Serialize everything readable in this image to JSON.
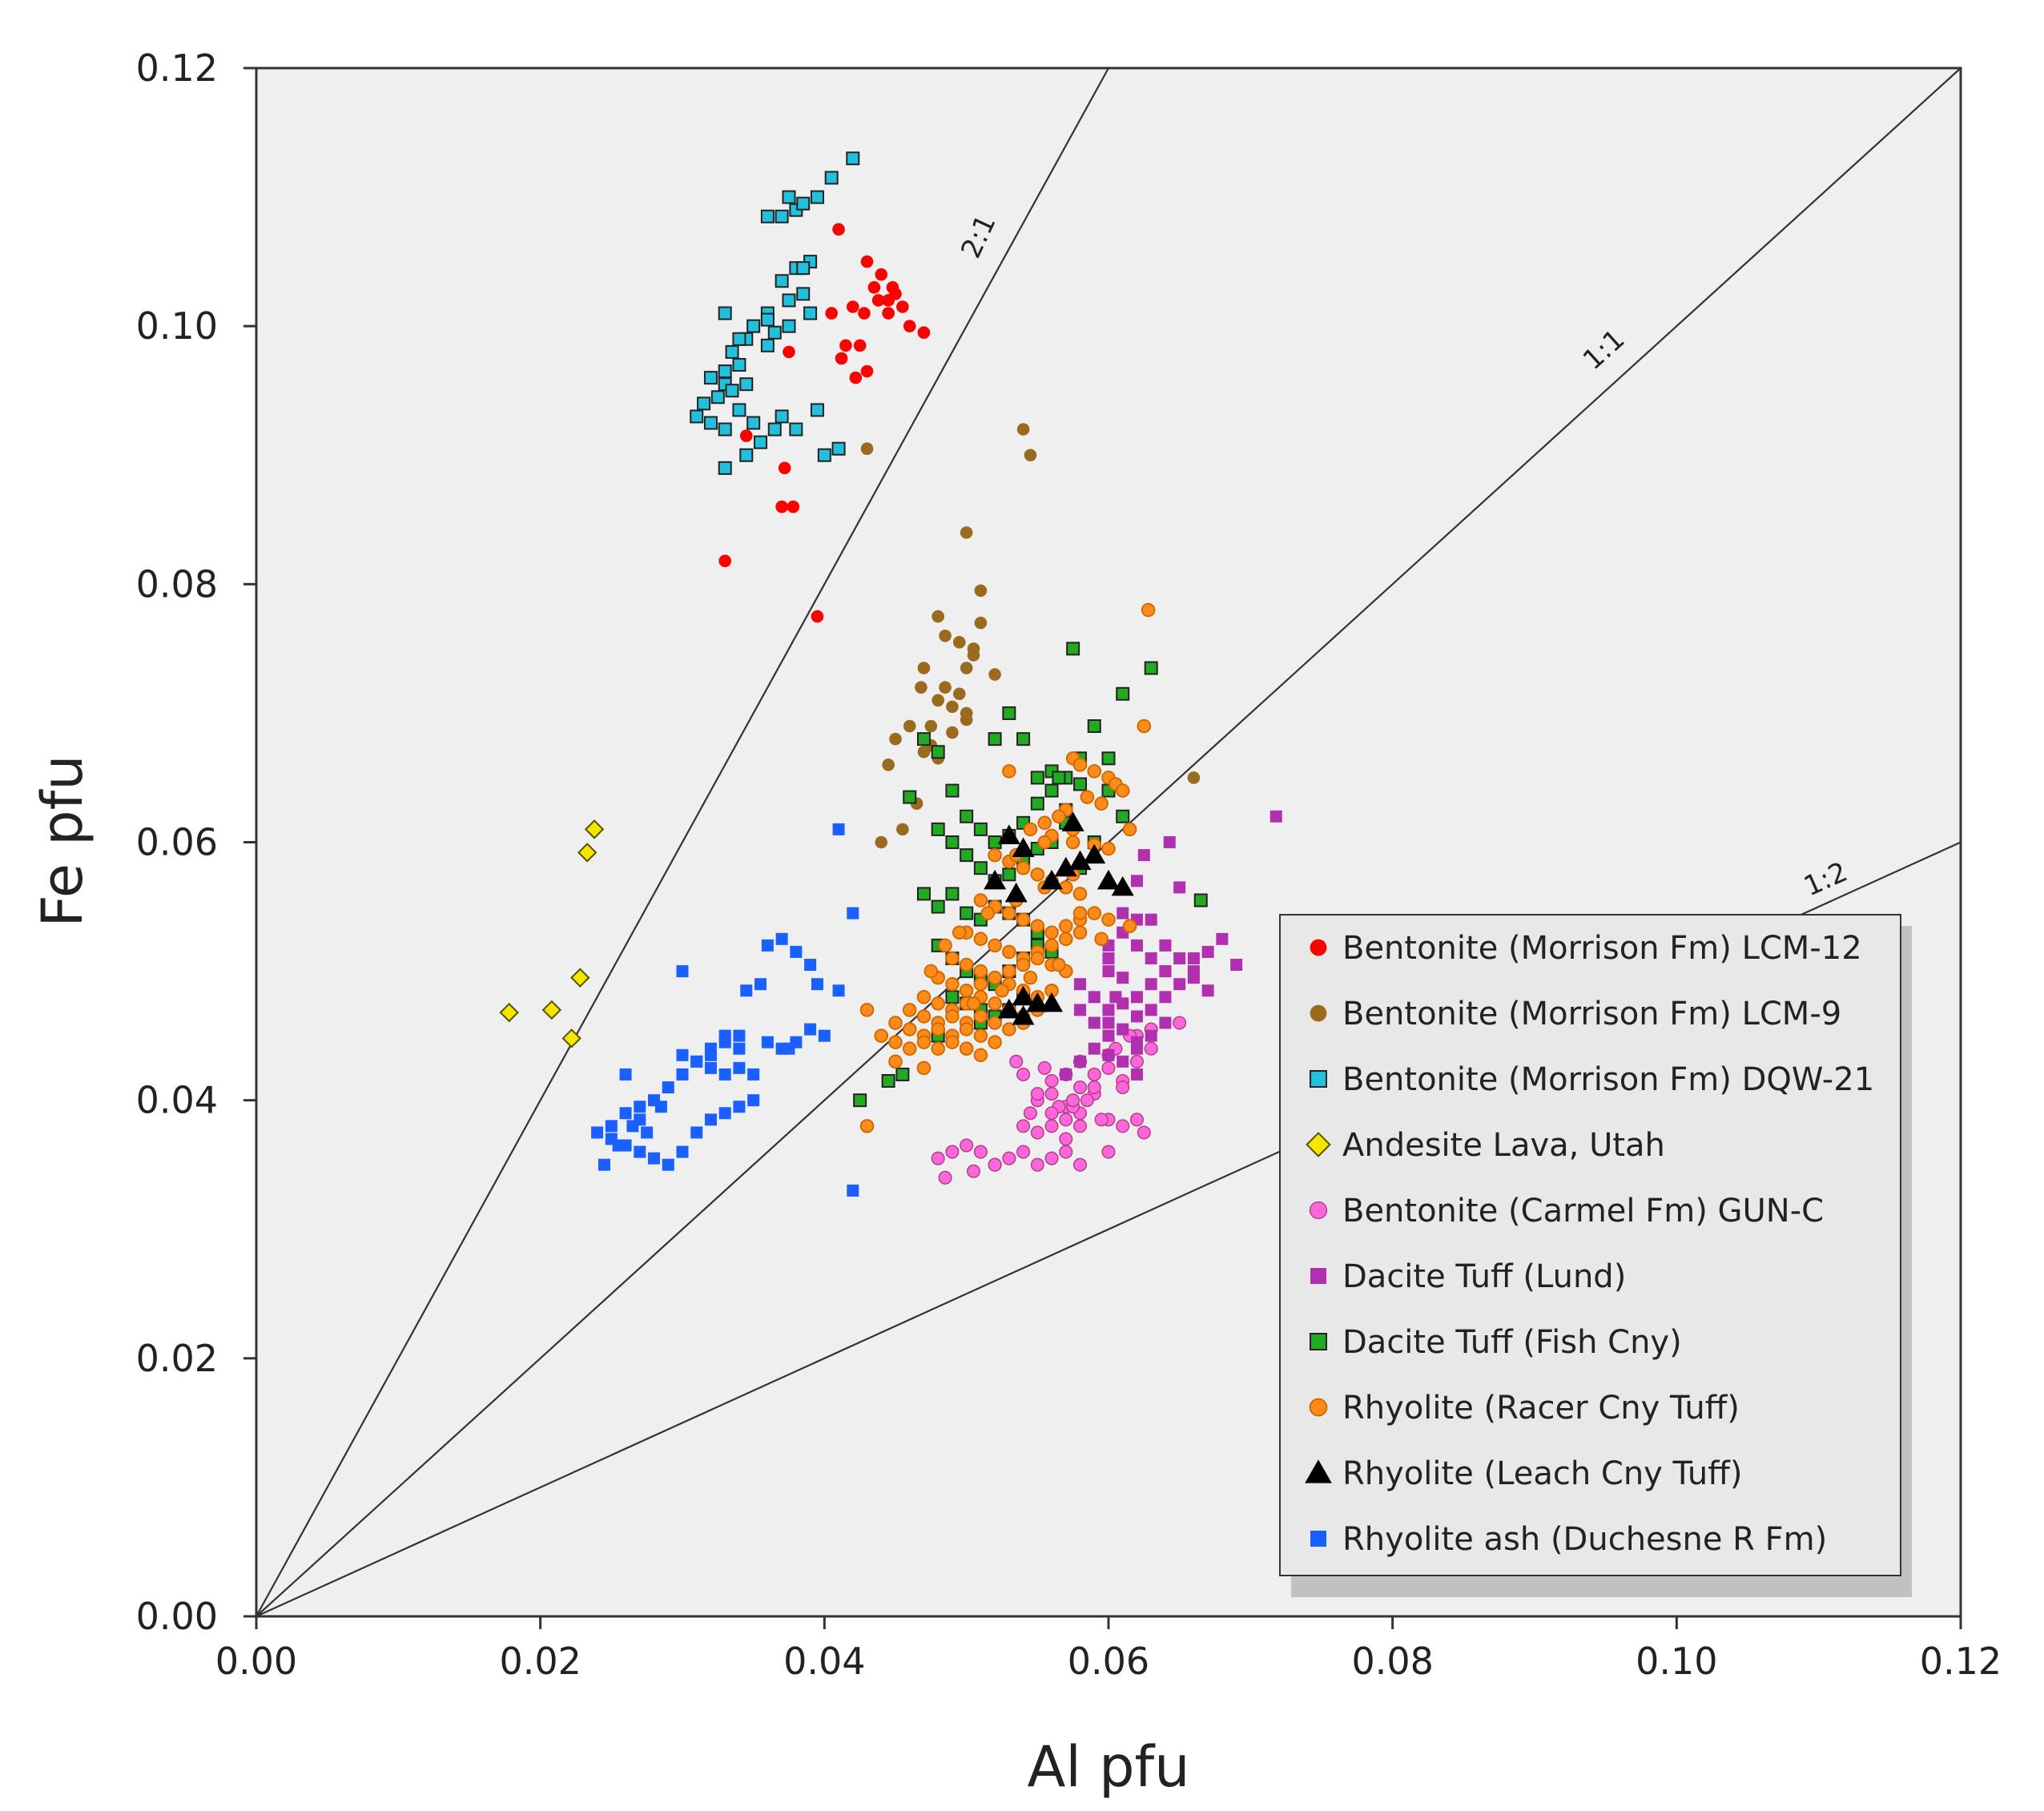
{
  "chart_data": {
    "type": "scatter",
    "xlabel": "Al pfu",
    "ylabel": "Fe  pfu",
    "xlim": [
      0,
      0.12
    ],
    "ylim": [
      0,
      0.12
    ],
    "x_ticks": [
      "0.00",
      "0.02",
      "0.04",
      "0.06",
      "0.08",
      "0.10",
      "0.12"
    ],
    "y_ticks": [
      "0.00",
      "0.02",
      "0.04",
      "0.06",
      "0.08",
      "0.10",
      "0.12"
    ],
    "legend_position": "lower-right",
    "reference_lines": [
      {
        "label": "2:1",
        "slope": 2
      },
      {
        "label": "1:1",
        "slope": 1
      },
      {
        "label": "1:2",
        "slope": 0.5
      }
    ],
    "series": [
      {
        "name": "Bentonite (Morrison Fm) LCM-12",
        "marker": "circle",
        "color": "#ff0000",
        "x": [
          0.041,
          0.042,
          0.043,
          0.0435,
          0.044,
          0.0445,
          0.045,
          0.046,
          0.047,
          0.0405,
          0.0415,
          0.0425,
          0.0445,
          0.0455,
          0.0412,
          0.0422,
          0.0438,
          0.0448,
          0.0428,
          0.0375,
          0.0345,
          0.0372,
          0.0378,
          0.037,
          0.033,
          0.0395,
          0.043
        ],
        "y": [
          0.1075,
          0.1015,
          0.105,
          0.103,
          0.104,
          0.101,
          0.1025,
          0.1,
          0.0995,
          0.101,
          0.0985,
          0.0985,
          0.102,
          0.1015,
          0.0975,
          0.096,
          0.102,
          0.103,
          0.101,
          0.098,
          0.0915,
          0.089,
          0.086,
          0.086,
          0.0818,
          0.0775,
          0.0965
        ]
      },
      {
        "name": "Bentonite (Morrison Fm) LCM-9",
        "marker": "circle",
        "color": "#9a6a1e",
        "x": [
          0.054,
          0.0545,
          0.043,
          0.05,
          0.048,
          0.0485,
          0.051,
          0.047,
          0.0505,
          0.048,
          0.0495,
          0.05,
          0.052,
          0.046,
          0.045,
          0.0475,
          0.049,
          0.05,
          0.047,
          0.0445,
          0.048,
          0.0465,
          0.0455,
          0.044,
          0.066,
          0.0495,
          0.05,
          0.0485,
          0.0475,
          0.047,
          0.0468,
          0.051,
          0.049,
          0.0505
        ],
        "y": [
          0.092,
          0.09,
          0.0905,
          0.084,
          0.0775,
          0.076,
          0.0795,
          0.0735,
          0.075,
          0.071,
          0.0715,
          0.07,
          0.073,
          0.069,
          0.068,
          0.0675,
          0.0685,
          0.0695,
          0.067,
          0.066,
          0.0665,
          0.063,
          0.061,
          0.06,
          0.065,
          0.0755,
          0.0735,
          0.072,
          0.069,
          0.068,
          0.072,
          0.077,
          0.0705,
          0.0745
        ]
      },
      {
        "name": "Bentonite (Morrison Fm) DQW-21",
        "marker": "square",
        "color": "#22c0dd",
        "x": [
          0.042,
          0.0405,
          0.0395,
          0.038,
          0.037,
          0.036,
          0.0385,
          0.0375,
          0.039,
          0.038,
          0.037,
          0.036,
          0.0385,
          0.039,
          0.0375,
          0.0365,
          0.036,
          0.0345,
          0.0335,
          0.034,
          0.033,
          0.032,
          0.033,
          0.0345,
          0.0335,
          0.0325,
          0.034,
          0.035,
          0.033,
          0.032,
          0.031,
          0.0315,
          0.033,
          0.0345,
          0.0355,
          0.0365,
          0.037,
          0.038,
          0.0395,
          0.04,
          0.041,
          0.033,
          0.034,
          0.035,
          0.036,
          0.0375,
          0.0385
        ],
        "y": [
          0.113,
          0.1115,
          0.11,
          0.109,
          0.1085,
          0.1085,
          0.1095,
          0.11,
          0.105,
          0.1045,
          0.1035,
          0.101,
          0.1025,
          0.101,
          0.1,
          0.0995,
          0.0985,
          0.099,
          0.098,
          0.097,
          0.0965,
          0.096,
          0.0955,
          0.0955,
          0.095,
          0.0945,
          0.0935,
          0.0925,
          0.092,
          0.0925,
          0.093,
          0.094,
          0.089,
          0.09,
          0.091,
          0.092,
          0.093,
          0.092,
          0.0935,
          0.09,
          0.0905,
          0.101,
          0.099,
          0.1,
          0.1005,
          0.102,
          0.1045
        ]
      },
      {
        "name": "Andesite Lava, Utah",
        "marker": "diamond",
        "color": "#f5e600",
        "x": [
          0.0178,
          0.0208,
          0.0222,
          0.0228,
          0.0233,
          0.0238
        ],
        "y": [
          0.0468,
          0.047,
          0.0448,
          0.0495,
          0.0592,
          0.061
        ]
      },
      {
        "name": "Bentonite (Carmel Fm) GUN-C",
        "marker": "circle",
        "color": "#ff66d9",
        "x": [
          0.055,
          0.056,
          0.057,
          0.058,
          0.059,
          0.06,
          0.061,
          0.062,
          0.063,
          0.056,
          0.057,
          0.058,
          0.055,
          0.057,
          0.059,
          0.06,
          0.054,
          0.056,
          0.058,
          0.06,
          0.062,
          0.0575,
          0.0595,
          0.061,
          0.048,
          0.049,
          0.05,
          0.051,
          0.052,
          0.053,
          0.054,
          0.055,
          0.056,
          0.057,
          0.058,
          0.06,
          0.061,
          0.062,
          0.0625,
          0.065,
          0.0545,
          0.0565,
          0.0585,
          0.0535,
          0.0555,
          0.0575,
          0.059,
          0.0605,
          0.0615,
          0.063,
          0.0485,
          0.0505,
          0.052,
          0.056,
          0.058,
          0.054,
          0.055,
          0.057
        ],
        "y": [
          0.04,
          0.0405,
          0.0395,
          0.041,
          0.042,
          0.0425,
          0.0415,
          0.043,
          0.044,
          0.038,
          0.0385,
          0.039,
          0.0375,
          0.037,
          0.0405,
          0.0385,
          0.042,
          0.0415,
          0.043,
          0.0435,
          0.045,
          0.0395,
          0.0385,
          0.041,
          0.0355,
          0.036,
          0.0365,
          0.036,
          0.035,
          0.0355,
          0.036,
          0.035,
          0.0355,
          0.036,
          0.035,
          0.036,
          0.038,
          0.0385,
          0.0375,
          0.046,
          0.039,
          0.0395,
          0.04,
          0.043,
          0.0425,
          0.04,
          0.041,
          0.044,
          0.045,
          0.0455,
          0.034,
          0.0345,
          0.035,
          0.039,
          0.038,
          0.038,
          0.0405,
          0.042
        ]
      },
      {
        "name": "Dacite Tuff (Lund)",
        "marker": "square",
        "color": "#b030b0",
        "x": [
          0.0718,
          0.0643,
          0.065,
          0.062,
          0.061,
          0.0625,
          0.063,
          0.064,
          0.065,
          0.066,
          0.067,
          0.068,
          0.069,
          0.06,
          0.061,
          0.062,
          0.063,
          0.064,
          0.065,
          0.066,
          0.067,
          0.06,
          0.061,
          0.062,
          0.063,
          0.064,
          0.058,
          0.059,
          0.06,
          0.061,
          0.062,
          0.063,
          0.064,
          0.058,
          0.059,
          0.06,
          0.061,
          0.062,
          0.063,
          0.059,
          0.06,
          0.061,
          0.062,
          0.057,
          0.058,
          0.06,
          0.062,
          0.06,
          0.062,
          0.064,
          0.066,
          0.0605
        ],
        "y": [
          0.062,
          0.06,
          0.0565,
          0.057,
          0.0545,
          0.059,
          0.054,
          0.052,
          0.051,
          0.05,
          0.0515,
          0.0525,
          0.0505,
          0.052,
          0.053,
          0.054,
          0.051,
          0.05,
          0.049,
          0.0495,
          0.0485,
          0.05,
          0.0495,
          0.048,
          0.049,
          0.048,
          0.049,
          0.048,
          0.047,
          0.0475,
          0.0465,
          0.047,
          0.046,
          0.047,
          0.046,
          0.045,
          0.0455,
          0.044,
          0.045,
          0.044,
          0.0435,
          0.043,
          0.042,
          0.042,
          0.043,
          0.046,
          0.0445,
          0.051,
          0.052,
          0.05,
          0.051,
          0.048
        ]
      },
      {
        "name": "Dacite Tuff (Fish Cny)",
        "marker": "square",
        "color": "#22aa22",
        "x": [
          0.0575,
          0.063,
          0.061,
          0.058,
          0.06,
          0.059,
          0.053,
          0.052,
          0.054,
          0.055,
          0.056,
          0.057,
          0.058,
          0.06,
          0.061,
          0.047,
          0.048,
          0.049,
          0.05,
          0.051,
          0.052,
          0.053,
          0.054,
          0.055,
          0.056,
          0.057,
          0.048,
          0.049,
          0.05,
          0.051,
          0.052,
          0.053,
          0.054,
          0.055,
          0.056,
          0.047,
          0.048,
          0.049,
          0.05,
          0.051,
          0.052,
          0.053,
          0.054,
          0.055,
          0.048,
          0.049,
          0.05,
          0.051,
          0.052,
          0.053,
          0.054,
          0.055,
          0.056,
          0.049,
          0.05,
          0.051,
          0.052,
          0.053,
          0.054,
          0.046,
          0.048,
          0.051,
          0.0445,
          0.0425,
          0.0455,
          0.0665,
          0.057,
          0.058,
          0.059,
          0.0565
        ],
        "y": [
          0.075,
          0.0735,
          0.0715,
          0.0665,
          0.0665,
          0.069,
          0.07,
          0.068,
          0.068,
          0.065,
          0.0655,
          0.065,
          0.0645,
          0.064,
          0.062,
          0.068,
          0.067,
          0.064,
          0.062,
          0.061,
          0.06,
          0.0605,
          0.0615,
          0.063,
          0.064,
          0.0625,
          0.061,
          0.06,
          0.059,
          0.058,
          0.057,
          0.0575,
          0.0585,
          0.0595,
          0.06,
          0.056,
          0.055,
          0.056,
          0.0545,
          0.054,
          0.055,
          0.0545,
          0.054,
          0.053,
          0.052,
          0.051,
          0.05,
          0.0495,
          0.049,
          0.05,
          0.051,
          0.052,
          0.0515,
          0.048,
          0.0475,
          0.047,
          0.0465,
          0.047,
          0.048,
          0.0635,
          0.045,
          0.046,
          0.0415,
          0.04,
          0.042,
          0.0555,
          0.0615,
          0.058,
          0.06,
          0.065
        ]
      },
      {
        "name": "Rhyolite (Racer Cny Tuff)",
        "marker": "circle",
        "color": "#ff8c1a",
        "x": [
          0.0628,
          0.0625,
          0.053,
          0.0575,
          0.058,
          0.059,
          0.06,
          0.0605,
          0.061,
          0.0585,
          0.0595,
          0.057,
          0.0565,
          0.0555,
          0.0545,
          0.056,
          0.0575,
          0.059,
          0.06,
          0.0615,
          0.052,
          0.053,
          0.054,
          0.055,
          0.056,
          0.057,
          0.058,
          0.051,
          0.052,
          0.053,
          0.054,
          0.055,
          0.056,
          0.057,
          0.058,
          0.059,
          0.05,
          0.051,
          0.052,
          0.053,
          0.054,
          0.055,
          0.056,
          0.057,
          0.058,
          0.049,
          0.05,
          0.051,
          0.052,
          0.053,
          0.054,
          0.055,
          0.056,
          0.057,
          0.048,
          0.049,
          0.05,
          0.051,
          0.052,
          0.053,
          0.054,
          0.055,
          0.056,
          0.047,
          0.048,
          0.049,
          0.05,
          0.051,
          0.052,
          0.053,
          0.054,
          0.055,
          0.046,
          0.047,
          0.048,
          0.049,
          0.05,
          0.051,
          0.052,
          0.053,
          0.054,
          0.045,
          0.046,
          0.047,
          0.048,
          0.049,
          0.05,
          0.051,
          0.052,
          0.044,
          0.045,
          0.046,
          0.047,
          0.048,
          0.049,
          0.05,
          0.051,
          0.043,
          0.045,
          0.047,
          0.043,
          0.058,
          0.06,
          0.0615,
          0.0595,
          0.0565,
          0.0545,
          0.0525,
          0.0505,
          0.0485,
          0.0475,
          0.0495,
          0.0515,
          0.0535,
          0.0555,
          0.0575,
          0.0535,
          0.0555,
          0.0575
        ],
        "y": [
          0.078,
          0.069,
          0.0655,
          0.0665,
          0.066,
          0.0655,
          0.065,
          0.0645,
          0.064,
          0.0635,
          0.063,
          0.0625,
          0.062,
          0.0615,
          0.061,
          0.0605,
          0.06,
          0.0598,
          0.0595,
          0.061,
          0.059,
          0.0585,
          0.058,
          0.0575,
          0.057,
          0.0565,
          0.056,
          0.0555,
          0.055,
          0.0545,
          0.054,
          0.0535,
          0.053,
          0.0535,
          0.054,
          0.0545,
          0.053,
          0.0525,
          0.052,
          0.0515,
          0.051,
          0.0515,
          0.052,
          0.0525,
          0.053,
          0.051,
          0.0505,
          0.05,
          0.0495,
          0.05,
          0.0505,
          0.051,
          0.0505,
          0.05,
          0.0495,
          0.049,
          0.0485,
          0.049,
          0.0495,
          0.049,
          0.0485,
          0.048,
          0.0485,
          0.048,
          0.0475,
          0.047,
          0.0475,
          0.048,
          0.0475,
          0.047,
          0.0465,
          0.047,
          0.047,
          0.0465,
          0.046,
          0.0465,
          0.046,
          0.0465,
          0.046,
          0.0455,
          0.046,
          0.046,
          0.0455,
          0.045,
          0.0455,
          0.045,
          0.0455,
          0.045,
          0.0445,
          0.045,
          0.0445,
          0.044,
          0.0445,
          0.044,
          0.0445,
          0.044,
          0.0435,
          0.047,
          0.043,
          0.0425,
          0.038,
          0.0545,
          0.054,
          0.0535,
          0.0525,
          0.0505,
          0.0495,
          0.0485,
          0.0475,
          0.052,
          0.05,
          0.053,
          0.0545,
          0.0555,
          0.0565,
          0.0575,
          0.059,
          0.06,
          0.061
        ]
      },
      {
        "name": "Rhyolite (Leach Cny Tuff)",
        "marker": "triangle",
        "color": "#000000",
        "x": [
          0.053,
          0.054,
          0.0535,
          0.052,
          0.056,
          0.057,
          0.058,
          0.059,
          0.06,
          0.061,
          0.0575,
          0.054,
          0.055,
          0.056,
          0.053,
          0.054
        ],
        "y": [
          0.0605,
          0.0595,
          0.056,
          0.057,
          0.057,
          0.058,
          0.0585,
          0.059,
          0.057,
          0.0565,
          0.0615,
          0.048,
          0.0475,
          0.0475,
          0.047,
          0.0465
        ]
      },
      {
        "name": "Rhyolite ash (Duchesne R Fm)",
        "marker": "square",
        "color": "#1a5fff",
        "x": [
          0.041,
          0.042,
          0.041,
          0.0395,
          0.039,
          0.038,
          0.037,
          0.036,
          0.0355,
          0.0345,
          0.034,
          0.033,
          0.032,
          0.031,
          0.03,
          0.032,
          0.033,
          0.034,
          0.035,
          0.036,
          0.037,
          0.038,
          0.039,
          0.034,
          0.033,
          0.032,
          0.031,
          0.03,
          0.029,
          0.028,
          0.027,
          0.026,
          0.025,
          0.024,
          0.025,
          0.026,
          0.027,
          0.028,
          0.029,
          0.03,
          0.031,
          0.032,
          0.033,
          0.034,
          0.035,
          0.027,
          0.0265,
          0.0275,
          0.0255,
          0.0245,
          0.026,
          0.0285,
          0.03,
          0.042,
          0.04,
          0.0375
        ],
        "y": [
          0.061,
          0.0545,
          0.0485,
          0.049,
          0.0505,
          0.0515,
          0.0525,
          0.052,
          0.049,
          0.0485,
          0.044,
          0.045,
          0.0435,
          0.043,
          0.0435,
          0.0425,
          0.042,
          0.0425,
          0.042,
          0.0445,
          0.044,
          0.0445,
          0.0455,
          0.045,
          0.0445,
          0.044,
          0.043,
          0.042,
          0.041,
          0.04,
          0.0395,
          0.039,
          0.038,
          0.0375,
          0.037,
          0.0365,
          0.036,
          0.0355,
          0.035,
          0.036,
          0.0375,
          0.0385,
          0.039,
          0.0395,
          0.04,
          0.0385,
          0.038,
          0.0375,
          0.0365,
          0.035,
          0.042,
          0.0395,
          0.05,
          0.033,
          0.045,
          0.044
        ]
      }
    ]
  }
}
